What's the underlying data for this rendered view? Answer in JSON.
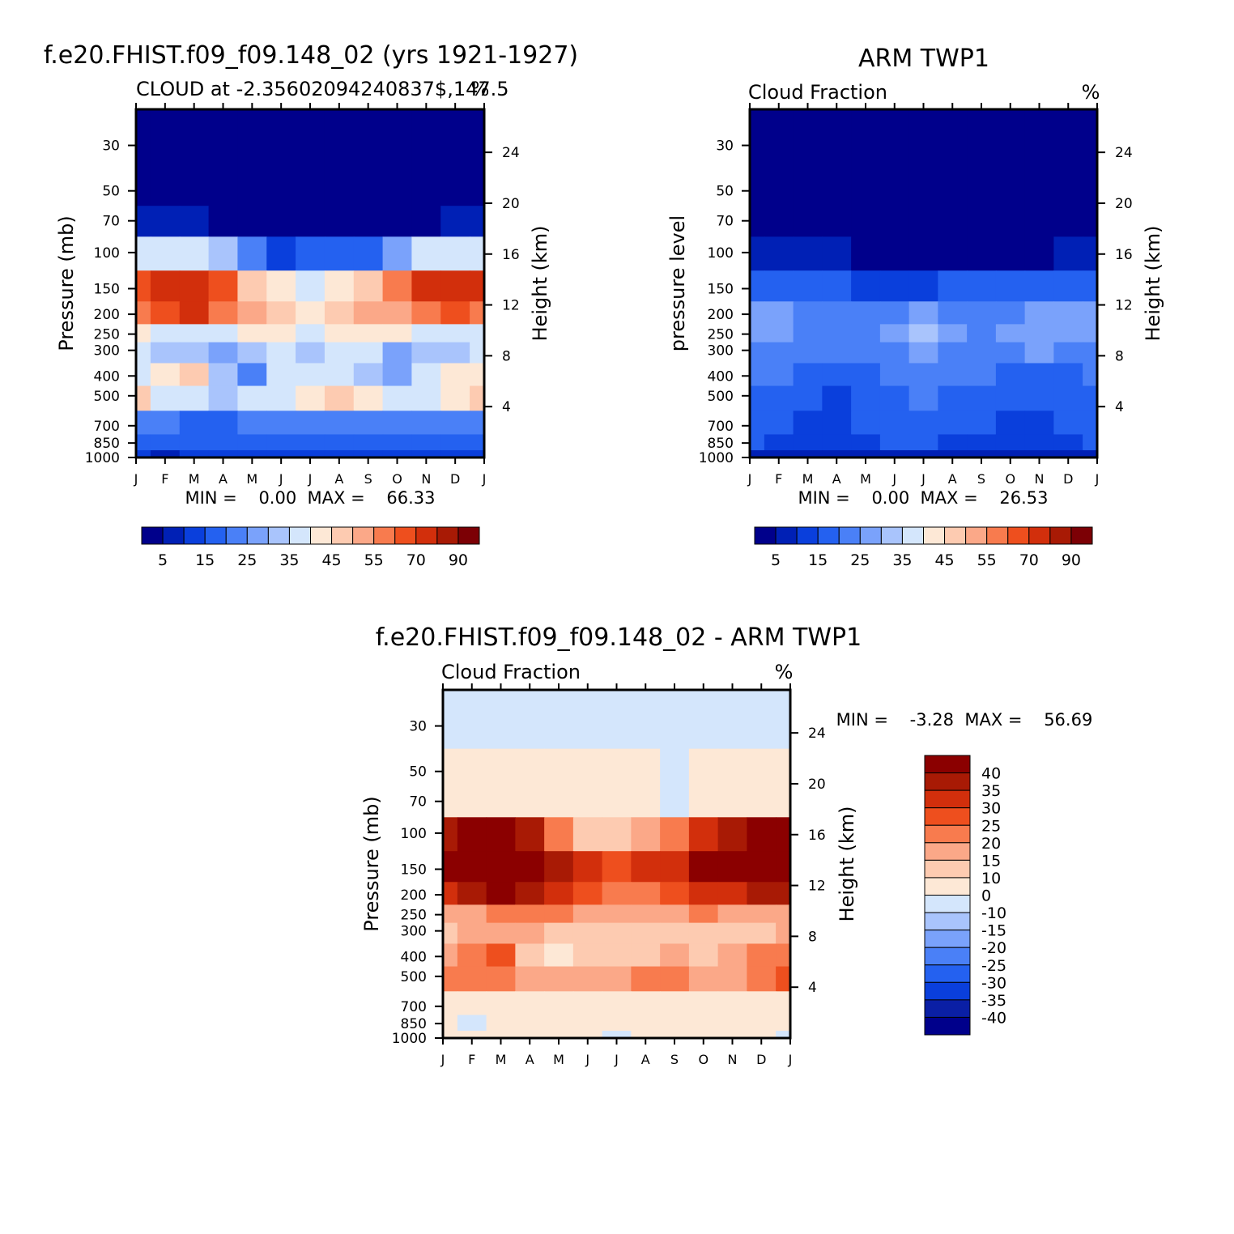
{
  "colors": {
    "sequential": [
      "#00008b",
      "#0020b5",
      "#0a3fdc",
      "#2461f0",
      "#4a80f7",
      "#7aa2fb",
      "#a9c4fc",
      "#d4e6fc",
      "#fde8d6",
      "#fdcbb1",
      "#fba888",
      "#f87b4e",
      "#ee4f1e",
      "#d22f0c",
      "#a81a05",
      "#7c0005"
    ],
    "diverging": [
      "#00008b",
      "#0a1fa5",
      "#0a3fdc",
      "#2461f0",
      "#4a80f7",
      "#7aa2fb",
      "#a9c4fc",
      "#d4e6fc",
      "#fde8d6",
      "#fdcbb1",
      "#fba888",
      "#f87b4e",
      "#ee4f1e",
      "#d22f0c",
      "#a81a05",
      "#8b0000"
    ]
  },
  "chart_data": [
    {
      "type": "heatmap",
      "title": "f.e20.FHIST.f09_f09.148_02 (yrs 1921-1927)",
      "subtitle": "CLOUD at -2.35602094240837$,147.5",
      "units": "%",
      "ylabel": "Pressure (mb)",
      "y2label": "Height (km)",
      "xlabels": [
        "J",
        "F",
        "M",
        "A",
        "M",
        "J",
        "J",
        "A",
        "S",
        "O",
        "N",
        "D",
        "J"
      ],
      "yticks": [
        "30",
        "50",
        "70",
        "100",
        "150",
        "200",
        "250",
        "300",
        "400",
        "500",
        "700",
        "850",
        "1000"
      ],
      "y2ticks": [
        "24",
        "20",
        "16",
        "12",
        "8",
        "4"
      ],
      "stats_text": "MIN =    0.00  MAX =    66.33",
      "min": 0.0,
      "max": 66.33,
      "colorbar_labels": [
        "5",
        "15",
        "25",
        "35",
        "45",
        "55",
        "70",
        "90"
      ],
      "levels": [
        30,
        50,
        70,
        100,
        150,
        200,
        250,
        300,
        400,
        500,
        700,
        850,
        1000
      ],
      "values": [
        [
          0,
          0,
          0,
          0,
          0,
          0,
          0,
          0,
          0,
          0,
          0,
          0,
          0
        ],
        [
          0,
          0,
          0,
          0,
          0,
          0,
          0,
          0,
          0,
          0,
          0,
          0,
          0
        ],
        [
          3,
          3,
          3,
          2,
          1,
          1,
          1,
          1,
          1,
          1,
          2,
          3,
          3
        ],
        [
          32,
          33,
          34,
          28,
          18,
          8,
          10,
          12,
          14,
          24,
          30,
          32,
          33
        ],
        [
          58,
          62,
          64,
          55,
          44,
          36,
          34,
          38,
          44,
          52,
          60,
          62,
          60
        ],
        [
          52,
          58,
          60,
          52,
          46,
          42,
          38,
          40,
          45,
          48,
          52,
          58,
          54
        ],
        [
          36,
          34,
          30,
          34,
          38,
          36,
          34,
          35,
          36,
          36,
          34,
          32,
          34
        ],
        [
          30,
          28,
          26,
          22,
          28,
          30,
          28,
          30,
          30,
          24,
          26,
          28,
          30
        ],
        [
          34,
          38,
          40,
          26,
          18,
          30,
          32,
          30,
          28,
          20,
          30,
          36,
          38
        ],
        [
          44,
          32,
          30,
          28,
          32,
          34,
          38,
          40,
          36,
          32,
          30,
          36,
          44
        ],
        [
          18,
          16,
          14,
          14,
          16,
          16,
          15,
          15,
          16,
          16,
          15,
          16,
          18
        ],
        [
          12,
          10,
          10,
          11,
          12,
          12,
          12,
          12,
          12,
          12,
          12,
          11,
          12
        ],
        [
          6,
          4,
          6,
          6,
          6,
          6,
          6,
          6,
          6,
          6,
          6,
          6,
          6
        ]
      ]
    },
    {
      "type": "heatmap",
      "title": "ARM TWP1",
      "subtitle": "Cloud Fraction",
      "units": "%",
      "ylabel": "pressure level",
      "y2label": "Height (km)",
      "xlabels": [
        "J",
        "F",
        "M",
        "A",
        "M",
        "J",
        "J",
        "A",
        "S",
        "O",
        "N",
        "D",
        "J"
      ],
      "yticks": [
        "30",
        "50",
        "70",
        "100",
        "150",
        "200",
        "250",
        "300",
        "400",
        "500",
        "700",
        "850",
        "1000"
      ],
      "y2ticks": [
        "24",
        "20",
        "16",
        "12",
        "8",
        "4"
      ],
      "stats_text": "MIN =    0.00  MAX =    26.53",
      "min": 0.0,
      "max": 26.53,
      "colorbar_labels": [
        "5",
        "15",
        "25",
        "35",
        "45",
        "55",
        "70",
        "90"
      ],
      "levels": [
        30,
        50,
        70,
        100,
        150,
        200,
        250,
        300,
        400,
        500,
        700,
        850,
        1000
      ],
      "values": [
        [
          0,
          0,
          0,
          0,
          0,
          0,
          0,
          0,
          0,
          0,
          0,
          0,
          0
        ],
        [
          0,
          0,
          0,
          0,
          0,
          0,
          0,
          0,
          0,
          0,
          0,
          0,
          0
        ],
        [
          0,
          0,
          0,
          0,
          0,
          0,
          0,
          0,
          0,
          0,
          0,
          0,
          0
        ],
        [
          3,
          3,
          3,
          3,
          2,
          2,
          2,
          2,
          2,
          2,
          2,
          3,
          3
        ],
        [
          12,
          14,
          14,
          12,
          9,
          8,
          9,
          10,
          11,
          11,
          12,
          13,
          14
        ],
        [
          21,
          20,
          19,
          17,
          18,
          19,
          20,
          19,
          19,
          19,
          21,
          20,
          21
        ],
        [
          22,
          20,
          18,
          17,
          19,
          21,
          26,
          21,
          19,
          20,
          24,
          20,
          23
        ],
        [
          18,
          17,
          15,
          16,
          18,
          19,
          22,
          19,
          18,
          18,
          22,
          18,
          17
        ],
        [
          16,
          15,
          12,
          10,
          14,
          16,
          18,
          16,
          15,
          12,
          13,
          14,
          15
        ],
        [
          14,
          14,
          12,
          9,
          13,
          14,
          17,
          14,
          12,
          11,
          12,
          12,
          13
        ],
        [
          14,
          11,
          8,
          7,
          10,
          12,
          13,
          12,
          10,
          8,
          8,
          10,
          12
        ],
        [
          10,
          8,
          6,
          5,
          7,
          10,
          11,
          8,
          8,
          7,
          7,
          8,
          10
        ],
        [
          4,
          4,
          4,
          4,
          4,
          4,
          4,
          4,
          4,
          4,
          4,
          4,
          4
        ]
      ]
    },
    {
      "type": "heatmap",
      "title": "f.e20.FHIST.f09_f09.148_02 - ARM TWP1",
      "subtitle": "Cloud Fraction",
      "units": "%",
      "ylabel": "Pressure (mb)",
      "y2label": "Height (km)",
      "xlabels": [
        "J",
        "F",
        "M",
        "A",
        "M",
        "J",
        "J",
        "A",
        "S",
        "O",
        "N",
        "D",
        "J"
      ],
      "yticks": [
        "30",
        "50",
        "70",
        "100",
        "150",
        "200",
        "250",
        "300",
        "400",
        "500",
        "700",
        "850",
        "1000"
      ],
      "y2ticks": [
        "24",
        "20",
        "16",
        "12",
        "8",
        "4"
      ],
      "stats_text": "MIN =    -3.28  MAX =    56.69",
      "min": -3.28,
      "max": 56.69,
      "colorbar_labels": [
        "40",
        "35",
        "30",
        "25",
        "20",
        "15",
        "10",
        "0",
        "-10",
        "-15",
        "-20",
        "-25",
        "-30",
        "-35",
        "-40"
      ],
      "levels": [
        30,
        50,
        70,
        100,
        150,
        200,
        250,
        300,
        400,
        500,
        700,
        850,
        1000
      ],
      "values": [
        [
          -1,
          -1,
          -1,
          -1,
          -1,
          -1,
          -1,
          -1,
          -1,
          -1,
          -1,
          -1,
          -1
        ],
        [
          2,
          2,
          2,
          2,
          2,
          2,
          2,
          1,
          -1,
          2,
          2,
          2,
          2
        ],
        [
          4,
          4,
          4,
          4,
          4,
          3,
          3,
          3,
          -1,
          3,
          4,
          4,
          4
        ],
        [
          38,
          40,
          41,
          36,
          24,
          10,
          14,
          18,
          22,
          30,
          38,
          40,
          42
        ],
        [
          48,
          50,
          52,
          45,
          38,
          30,
          28,
          30,
          34,
          42,
          48,
          50,
          48
        ],
        [
          34,
          38,
          42,
          36,
          30,
          26,
          22,
          24,
          28,
          30,
          34,
          38,
          36
        ],
        [
          18,
          18,
          20,
          22,
          20,
          18,
          16,
          18,
          18,
          20,
          18,
          16,
          18
        ],
        [
          14,
          16,
          18,
          16,
          12,
          12,
          10,
          12,
          14,
          10,
          12,
          14,
          16
        ],
        [
          18,
          20,
          26,
          14,
          8,
          14,
          12,
          14,
          16,
          10,
          16,
          20,
          22
        ],
        [
          24,
          20,
          24,
          18,
          16,
          18,
          16,
          22,
          24,
          18,
          16,
          24,
          26
        ],
        [
          6,
          6,
          6,
          6,
          6,
          6,
          6,
          6,
          6,
          6,
          6,
          6,
          6
        ],
        [
          4,
          -1,
          4,
          4,
          4,
          4,
          4,
          4,
          4,
          4,
          4,
          4,
          4
        ],
        [
          2,
          2,
          2,
          2,
          2,
          2,
          -1,
          2,
          2,
          2,
          2,
          2,
          -1
        ]
      ]
    }
  ]
}
